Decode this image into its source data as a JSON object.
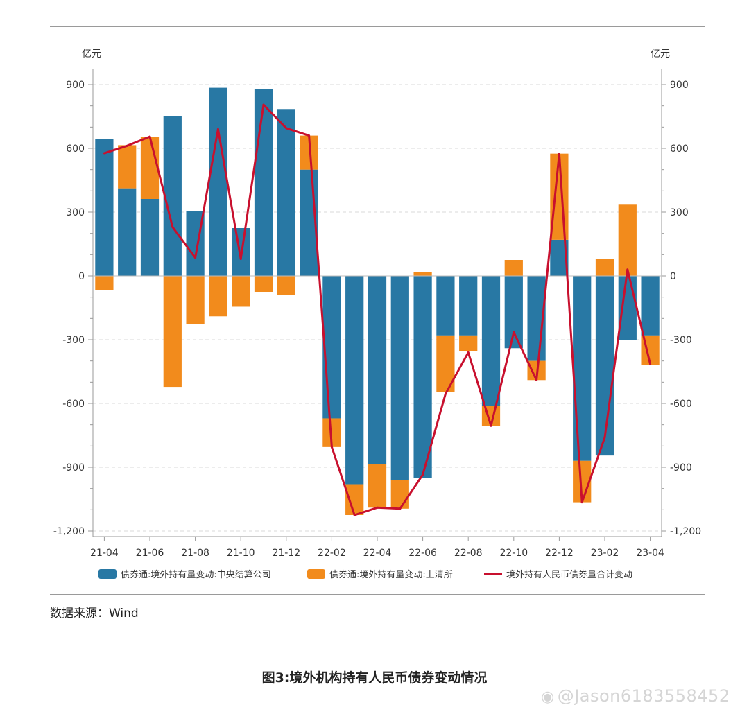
{
  "chart_data": {
    "type": "bar",
    "stacked": true,
    "left_unit": "亿元",
    "right_unit": "亿元",
    "ylim": [
      -1200,
      900
    ],
    "y_ticks": [
      900,
      600,
      300,
      0,
      -300,
      -600,
      -900,
      -1200
    ],
    "y_tick_labels": [
      "900",
      "600",
      "300",
      "0",
      "-300",
      "-600",
      "-900",
      "-1,200"
    ],
    "x_tick_labels": [
      "21-04",
      "21-06",
      "21-08",
      "21-10",
      "21-12",
      "22-02",
      "22-04",
      "22-06",
      "22-08",
      "22-10",
      "22-12",
      "23-02",
      "23-04"
    ],
    "categories": [
      "21-04",
      "21-05",
      "21-06",
      "21-07",
      "21-08",
      "21-09",
      "21-10",
      "21-11",
      "21-12",
      "22-01",
      "22-02",
      "22-03",
      "22-04",
      "22-05",
      "22-06",
      "22-07",
      "22-08",
      "22-09",
      "22-10",
      "22-11",
      "22-12",
      "23-01",
      "23-02",
      "23-03",
      "23-04"
    ],
    "grid": "horizontal-dashed",
    "legend_position": "bottom",
    "series": [
      {
        "name": "债券通:境外持有量变动:中央结算公司",
        "kind": "bar",
        "color": "#2878a4",
        "values": [
          645,
          412,
          362,
          752,
          305,
          885,
          225,
          880,
          785,
          500,
          -670,
          -980,
          -885,
          -960,
          -950,
          -280,
          -280,
          -610,
          -340,
          -400,
          170,
          -870,
          -845,
          -300,
          -280
        ]
      },
      {
        "name": "债券通:境外持有量变动:上清所",
        "kind": "bar",
        "color": "#f28b1c",
        "values": [
          -68,
          203,
          293,
          -522,
          -225,
          -190,
          -145,
          -75,
          -90,
          160,
          -135,
          -145,
          -205,
          -135,
          18,
          -265,
          -75,
          -95,
          75,
          -90,
          405,
          -195,
          80,
          335,
          -140
        ]
      },
      {
        "name": "境外持有人民币债券量合计变动",
        "kind": "line",
        "color": "#c8102e",
        "values": [
          577,
          612,
          655,
          230,
          85,
          690,
          80,
          805,
          695,
          660,
          -805,
          -1125,
          -1090,
          -1095,
          -935,
          -555,
          -360,
          -705,
          -265,
          -490,
          575,
          -1065,
          -760,
          30,
          -415
        ]
      }
    ]
  },
  "source_text": "数据来源：Wind",
  "caption": "图3:境外机构持有人民币债券变动情况",
  "watermark": "@Jason6183558452"
}
